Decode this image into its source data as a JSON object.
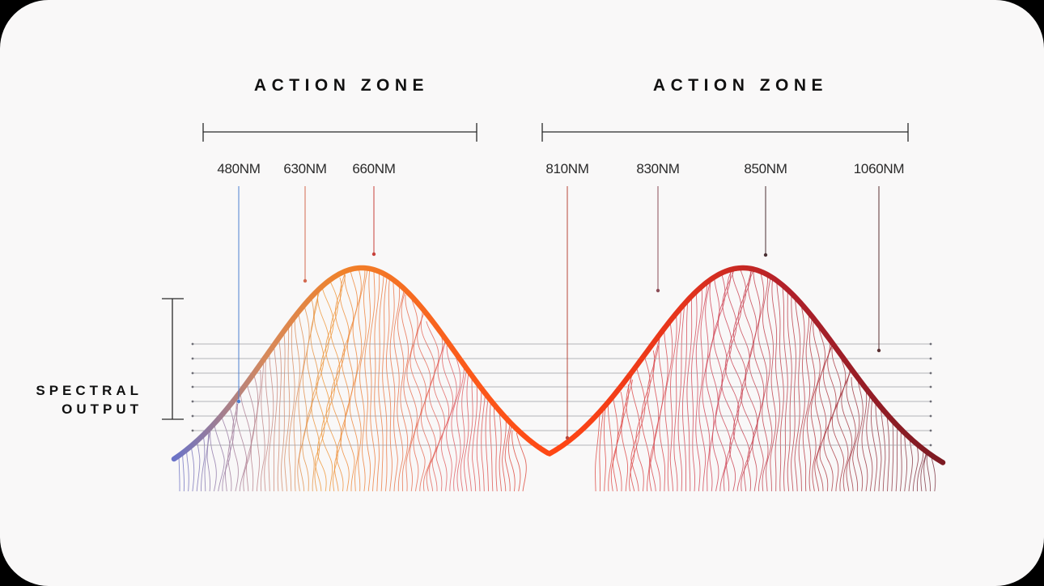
{
  "zones": [
    {
      "title": "ACTION ZONE"
    },
    {
      "title": "ACTION ZONE"
    }
  ],
  "wavelengths": [
    {
      "label": "480NM",
      "color": "#4d7fd0"
    },
    {
      "label": "630NM",
      "color": "#d36a50"
    },
    {
      "label": "660NM",
      "color": "#c7413a"
    },
    {
      "label": "810NM",
      "color": "#b9473a"
    },
    {
      "label": "830NM",
      "color": "#8c4e58"
    },
    {
      "label": "850NM",
      "color": "#4a3034"
    },
    {
      "label": "1060NM",
      "color": "#5a3032"
    }
  ],
  "side_label": {
    "line1": "SPECTRAL",
    "line2": "OUTPUT"
  },
  "colors": {
    "background": "#f9f8f8",
    "curve_start": "#f07a28",
    "curve_mid": "#ff4a14",
    "curve_end": "#861a20",
    "blue": "#6a73c8",
    "gridline": "#9c9ca3"
  }
}
